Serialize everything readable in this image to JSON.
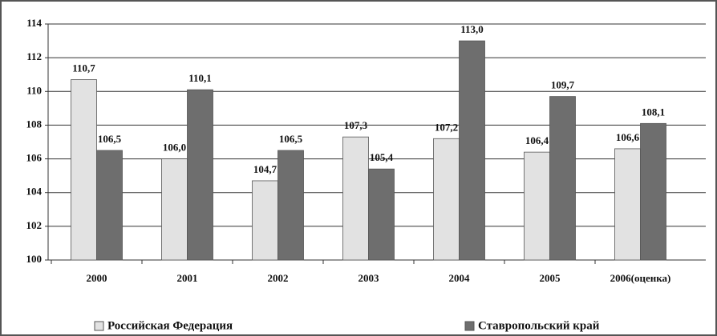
{
  "chart_data": {
    "type": "bar",
    "categories": [
      "2000",
      "2001",
      "2002",
      "2003",
      "2004",
      "2005",
      "2006(оценка)"
    ],
    "series": [
      {
        "name": "Российская Федерация",
        "color": "#e2e2e2",
        "values": [
          110.7,
          106.0,
          104.7,
          107.3,
          107.2,
          106.4,
          106.6
        ],
        "value_labels": [
          "110,7",
          "106,0",
          "104,7",
          "107,3",
          "107,2",
          "106,4",
          "106,6"
        ]
      },
      {
        "name": "Ставропольский край",
        "color": "#6e6e6e",
        "values": [
          106.5,
          110.1,
          106.5,
          105.4,
          113.0,
          109.7,
          108.1
        ],
        "value_labels": [
          "106,5",
          "110,1",
          "106,5",
          "105,4",
          "113,0",
          "109,7",
          "108,1"
        ]
      }
    ],
    "ylim": [
      100,
      114
    ],
    "yticks": [
      100,
      102,
      104,
      106,
      108,
      110,
      112,
      114
    ],
    "grid": true,
    "legend": "bottom"
  }
}
